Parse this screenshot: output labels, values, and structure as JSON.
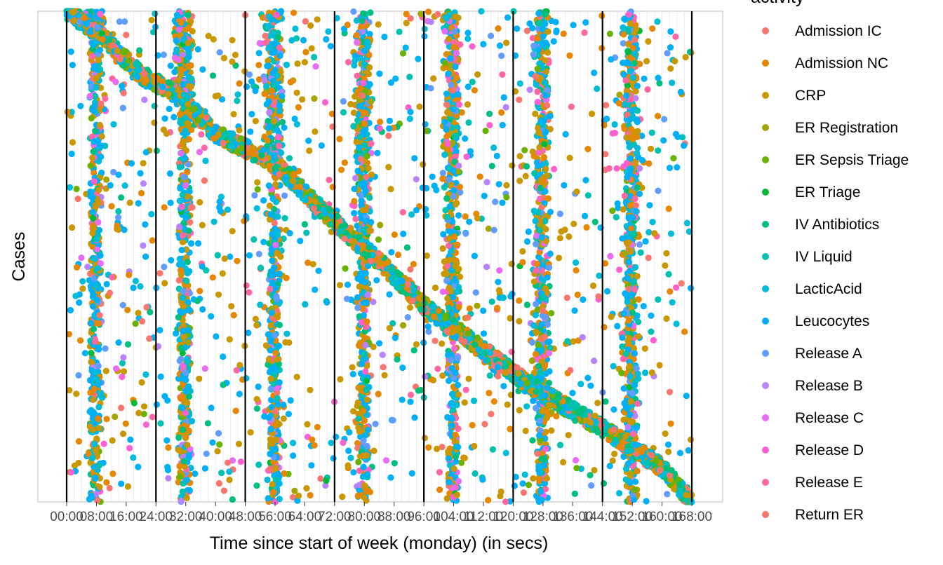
{
  "chart_data": {
    "type": "scatter",
    "xlabel": "Time since start of week (monday) (in secs)",
    "ylabel": "Cases",
    "legend_title": "activity",
    "legend_position": "right",
    "grid": true,
    "x_range_hours": [
      0,
      168
    ],
    "x_tick_interval_hours": 8,
    "x_tick_labels": [
      "00:00",
      "08:00",
      "16:00",
      "24:00",
      "32:00",
      "40:00",
      "48:00",
      "56:00",
      "64:00",
      "72:00",
      "80:00",
      "88:00",
      "96:00",
      "104:00",
      "112:00",
      "120:00",
      "128:00",
      "136:00",
      "144:00",
      "152:00",
      "160:00",
      "168:00"
    ],
    "x_tick_display": [
      "00:00",
      "08:00",
      "16:00",
      "24:00",
      "32:00",
      "40:00",
      "48:00",
      "56:00",
      "64:00",
      "72:00",
      "80:00",
      "88:00",
      "96:00",
      "104:00",
      "112:00",
      "120:00",
      "128:00",
      "136:00",
      "144:00",
      "152:00",
      "160:00",
      "168:00"
    ],
    "day_boundaries_hours": [
      0,
      24,
      48,
      72,
      96,
      120,
      144,
      168
    ],
    "series": [
      {
        "name": "Admission IC",
        "color": "#F8766D"
      },
      {
        "name": "Admission NC",
        "color": "#E58700"
      },
      {
        "name": "CRP",
        "color": "#C99800"
      },
      {
        "name": "ER Registration",
        "color": "#A3A500"
      },
      {
        "name": "ER Sepsis Triage",
        "color": "#6BB100"
      },
      {
        "name": "ER Triage",
        "color": "#00BA38"
      },
      {
        "name": "IV Antibiotics",
        "color": "#00BF7D"
      },
      {
        "name": "IV Liquid",
        "color": "#00C0AF"
      },
      {
        "name": "LacticAcid",
        "color": "#00BCD8"
      },
      {
        "name": "Leucocytes",
        "color": "#00B0F6"
      },
      {
        "name": "Release A",
        "color": "#619CFF"
      },
      {
        "name": "Release B",
        "color": "#B983FF"
      },
      {
        "name": "Release C",
        "color": "#E76BF3"
      },
      {
        "name": "Release D",
        "color": "#FD61D1"
      },
      {
        "name": "Release E",
        "color": "#FF67A4"
      },
      {
        "name": "Return ER",
        "color": "#F8766D"
      }
    ],
    "trend": {
      "description_points_hours_vs_case_fraction": [
        [
          0,
          0.0
        ],
        [
          8,
          0.04
        ],
        [
          20,
          0.13
        ],
        [
          30,
          0.17
        ],
        [
          40,
          0.25
        ],
        [
          56,
          0.31
        ],
        [
          72,
          0.43
        ],
        [
          84,
          0.51
        ],
        [
          96,
          0.6
        ],
        [
          110,
          0.68
        ],
        [
          126,
          0.77
        ],
        [
          144,
          0.85
        ],
        [
          160,
          0.93
        ],
        [
          168,
          1.0
        ]
      ]
    },
    "activity_bands_hours": [
      6.5,
      9,
      30.5,
      33,
      54.5,
      57,
      78.5,
      81,
      102.5,
      105,
      126.5,
      129,
      150.5,
      153
    ]
  }
}
